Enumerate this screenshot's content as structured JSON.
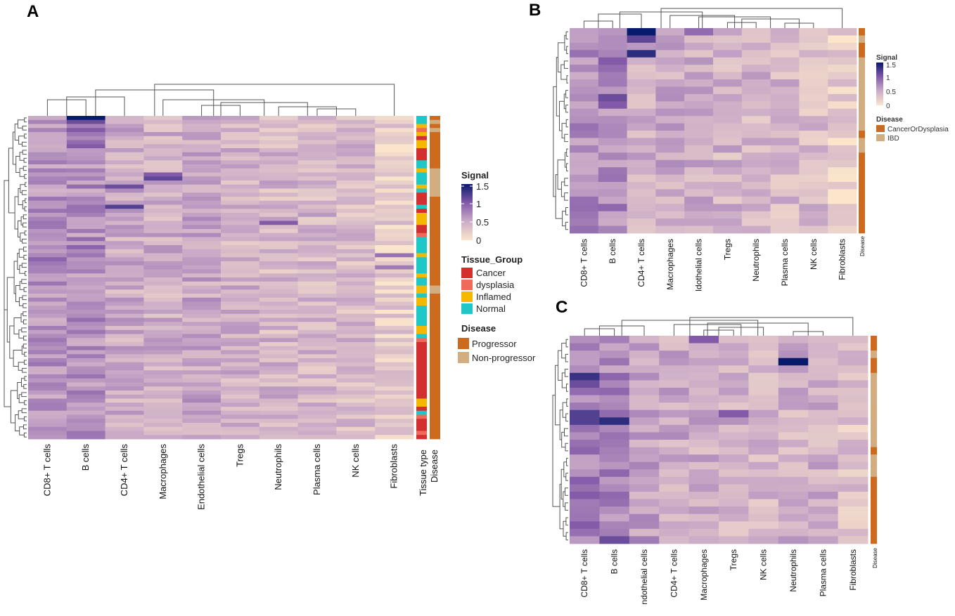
{
  "figure": {
    "panel_letters": [
      "A",
      "B",
      "C"
    ]
  },
  "colors": {
    "scale": [
      "#fbe6cc",
      "#c8a9c7",
      "#7f57a6",
      "#081a6c"
    ],
    "tissue_group": {
      "Cancer": "#d32f2f",
      "dysplasia": "#ef6a5a",
      "Inflamed": "#f5b800",
      "Normal": "#1fc8c8"
    },
    "disease_A": {
      "Progressor": "#cd6a1e",
      "Non-progressor": "#d2ad80"
    },
    "disease_B": {
      "CancerOrDysplasia": "#cd6a1e",
      "IBD": "#d2ad80"
    }
  },
  "legend_A": {
    "signal_title": "Signal",
    "signal_ticks": [
      "1.5",
      "1",
      "0.5",
      "0"
    ],
    "tissue_title": "Tissue_Group",
    "tissue_items": [
      "Cancer",
      "dysplasia",
      "Inflamed",
      "Normal"
    ],
    "disease_title": "Disease",
    "disease_items": [
      "Progressor",
      "Non-progressor"
    ]
  },
  "legend_B": {
    "signal_title": "Signal",
    "signal_ticks": [
      "1.5",
      "1",
      "0.5",
      "0"
    ],
    "disease_title": "Disease",
    "disease_items": [
      "CancerOrDysplasia",
      "IBD"
    ]
  },
  "chart_data": [
    {
      "panel": "A",
      "type": "heatmap",
      "title": "",
      "columns": [
        "CD8+ T cells",
        "B cells",
        "CD4+ T cells",
        "Macrophages",
        "Endothelial cells",
        "Tregs",
        "Neutrophils",
        "Plasma cells",
        "NK cells",
        "Fibroblasts"
      ],
      "annotation_columns": [
        "Tissue type",
        "Disease"
      ],
      "n_rows": 80,
      "value_range": [
        0,
        1.5
      ],
      "legend": "Signal",
      "tissue_type_rows": [
        "N",
        "N",
        "I",
        "D",
        "I",
        "C",
        "I",
        "I",
        "C",
        "C",
        "C",
        "N",
        "N",
        "I",
        "N",
        "N",
        "N",
        "I",
        "N",
        "C",
        "C",
        "C",
        "N",
        "C",
        "I",
        "I",
        "I",
        "C",
        "C",
        "D",
        "N",
        "N",
        "N",
        "N",
        "I",
        "N",
        "N",
        "N",
        "N",
        "I",
        "N",
        "N",
        "I",
        "I",
        "N",
        "I",
        "I",
        "N",
        "N",
        "N",
        "N",
        "N",
        "I",
        "I",
        "N",
        "D",
        "C",
        "C",
        "C",
        "C",
        "C",
        "C",
        "C",
        "C",
        "C",
        "C",
        "C",
        "C",
        "C",
        "C",
        "I",
        "I",
        "C",
        "N",
        "D",
        "C",
        "C",
        "C",
        "D",
        "C"
      ],
      "disease_rows": [
        "P",
        "N",
        "P",
        "N",
        "P",
        "P",
        "P",
        "P",
        "P",
        "P",
        "P",
        "P",
        "P",
        "N",
        "N",
        "N",
        "N",
        "N",
        "N",
        "N",
        "P",
        "P",
        "P",
        "P",
        "P",
        "P",
        "P",
        "P",
        "P",
        "P",
        "P",
        "P",
        "P",
        "P",
        "P",
        "P",
        "P",
        "P",
        "P",
        "P",
        "P",
        "P",
        "N",
        "N",
        "P",
        "P",
        "P",
        "P",
        "P",
        "P",
        "P",
        "P",
        "P",
        "P",
        "P",
        "P",
        "P",
        "P",
        "P",
        "P",
        "P",
        "P",
        "P",
        "P",
        "P",
        "P",
        "P",
        "P",
        "P",
        "P",
        "P",
        "P",
        "P",
        "P",
        "P",
        "P",
        "P",
        "P",
        "P",
        "P"
      ]
    },
    {
      "panel": "B",
      "type": "heatmap",
      "columns": [
        "CD8+ T cells",
        "B cells",
        "CD4+ T cells",
        "Macrophages",
        "Endothelial cells",
        "Tregs",
        "Neutrophils",
        "Plasma cells",
        "NK cells",
        "Fibroblasts"
      ],
      "column_labels_shown": [
        "CD8+ T cells",
        "B cells",
        "CD4+ T cells",
        "Macrophages",
        "ldothelial cells",
        "Tregs",
        "Neutrophils",
        "Plasma cells",
        "NK cells",
        "Fibroblasts"
      ],
      "annotation_columns": [
        "Disease"
      ],
      "n_rows": 28,
      "value_range": [
        0,
        1.5
      ],
      "legend": "Signal",
      "disease_rows": [
        "P",
        "N",
        "P",
        "P",
        "N",
        "N",
        "N",
        "N",
        "N",
        "N",
        "N",
        "N",
        "N",
        "N",
        "P",
        "N",
        "N",
        "P",
        "P",
        "P",
        "P",
        "P",
        "P",
        "P",
        "P",
        "P",
        "P",
        "P"
      ]
    },
    {
      "panel": "C",
      "type": "heatmap",
      "columns": [
        "CD8+ T cells",
        "B cells",
        "Endothelial cells",
        "CD4+ T cells",
        "Macrophages",
        "Tregs",
        "NK cells",
        "Neutrophils",
        "Plasma cells",
        "Fibroblasts"
      ],
      "column_labels_shown": [
        "CD8+ T cells",
        "B cells",
        "ndothelial cells",
        "CD4+ T cells",
        "Macrophages",
        "Tregs",
        "NK cells",
        "Neutrophils",
        "Plasma cells",
        "Fibroblasts"
      ],
      "annotation_columns": [
        "Disease"
      ],
      "n_rows": 28,
      "value_range": [
        0,
        1.5
      ],
      "legend": "Signal",
      "disease_rows": [
        "P",
        "P",
        "N",
        "P",
        "P",
        "N",
        "N",
        "N",
        "N",
        "N",
        "N",
        "N",
        "N",
        "N",
        "N",
        "P",
        "N",
        "N",
        "N",
        "P",
        "P",
        "P",
        "P",
        "P",
        "P",
        "P",
        "P",
        "P"
      ]
    }
  ]
}
